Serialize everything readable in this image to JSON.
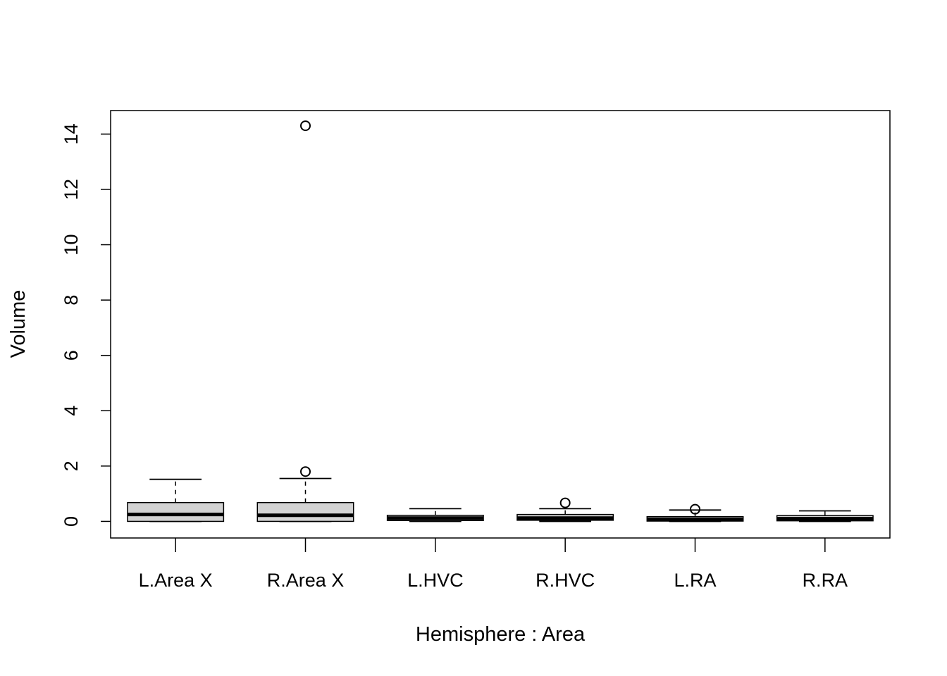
{
  "chart_data": {
    "type": "boxplot",
    "xlabel": "Hemisphere : Area",
    "ylabel": "Volume",
    "ylim": [
      -0.6,
      14.85
    ],
    "yticks": [
      0,
      2,
      4,
      6,
      8,
      10,
      12,
      14
    ],
    "grid": false,
    "colors": {
      "box_fill": "#d3d3d3",
      "stroke": "#000000",
      "background": "#ffffff"
    },
    "categories": [
      "L.Area X",
      "R.Area X",
      "L.HVC",
      "R.HVC",
      "L.RA",
      "R.RA"
    ],
    "boxes": [
      {
        "category": "L.Area X",
        "whisker_low": 0.0,
        "q1": 0.0,
        "median": 0.25,
        "q3": 0.68,
        "whisker_high": 1.52,
        "outliers": []
      },
      {
        "category": "R.Area X",
        "whisker_low": 0.0,
        "q1": 0.0,
        "median": 0.22,
        "q3": 0.68,
        "whisker_high": 1.55,
        "outliers": [
          1.8,
          14.3
        ]
      },
      {
        "category": "L.HVC",
        "whisker_low": 0.0,
        "q1": 0.03,
        "median": 0.12,
        "q3": 0.22,
        "whisker_high": 0.46,
        "outliers": []
      },
      {
        "category": "R.HVC",
        "whisker_low": 0.0,
        "q1": 0.04,
        "median": 0.12,
        "q3": 0.25,
        "whisker_high": 0.46,
        "outliers": [
          0.67
        ]
      },
      {
        "category": "L.RA",
        "whisker_low": 0.0,
        "q1": 0.01,
        "median": 0.07,
        "q3": 0.17,
        "whisker_high": 0.41,
        "outliers": [
          0.44
        ]
      },
      {
        "category": "R.RA",
        "whisker_low": 0.0,
        "q1": 0.02,
        "median": 0.1,
        "q3": 0.21,
        "whisker_high": 0.38,
        "outliers": []
      }
    ]
  }
}
